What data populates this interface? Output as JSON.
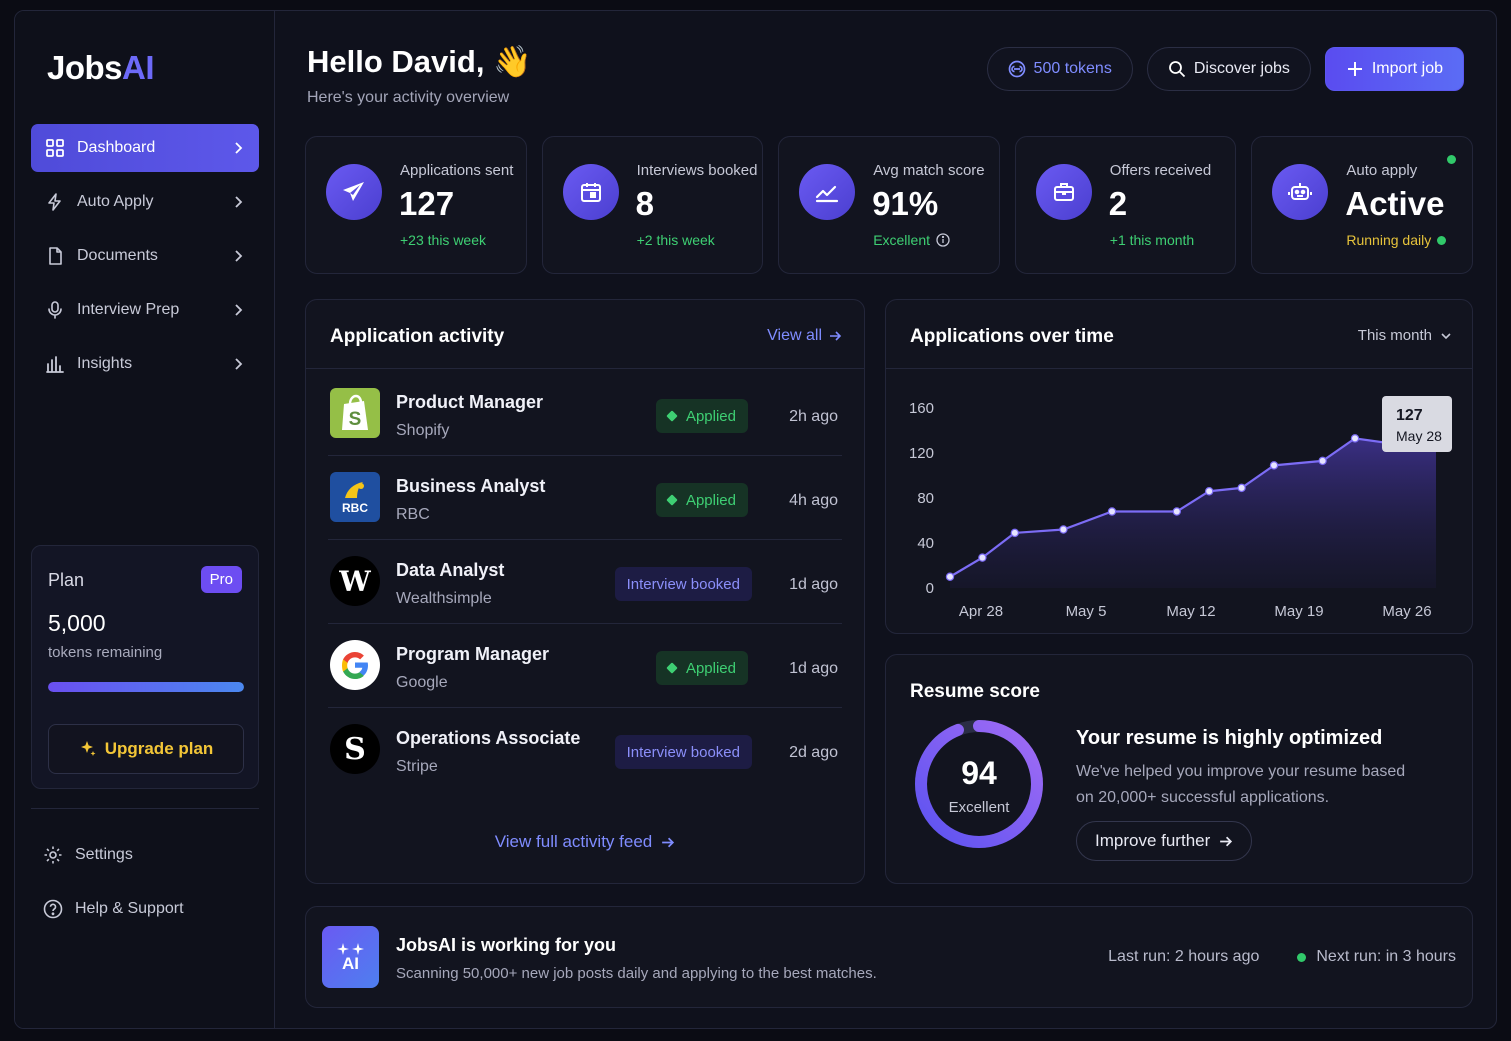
{
  "brand": {
    "name_part1": "Jobs",
    "name_part2": "AI",
    "accent": "#6d6af8"
  },
  "sidebar": {
    "items": [
      {
        "label": "Dashboard",
        "icon": "grid-icon",
        "active": true
      },
      {
        "label": "Auto Apply",
        "icon": "lightning-icon"
      },
      {
        "label": "Documents",
        "icon": "document-icon"
      },
      {
        "label": "Interview Prep",
        "icon": "microphone-icon"
      },
      {
        "label": "Insights",
        "icon": "bar-chart-icon"
      }
    ],
    "plan": {
      "title": "Plan",
      "badge": "Pro",
      "tokens": "5,000",
      "tokens_label": "tokens remaining",
      "usage_fraction": 1.0,
      "upgrade_label": "Upgrade plan"
    },
    "bottom": [
      {
        "label": "Settings",
        "icon": "gear-icon"
      },
      {
        "label": "Help & Support",
        "icon": "help-icon"
      }
    ]
  },
  "header": {
    "greeting": "Hello David, 👋",
    "subtitle": "Here's your activity overview",
    "tokens_label": "500 tokens",
    "discover_label": "Discover jobs",
    "import_label": "Import job"
  },
  "stats": [
    {
      "label": "Applications sent",
      "value": "127",
      "note": "+23 this week",
      "icon": "paper-plane-icon"
    },
    {
      "label": "Interviews booked",
      "value": "8",
      "note": "+2 this week",
      "icon": "calendar-icon"
    },
    {
      "label": "Avg match score",
      "value": "91%",
      "note": "Excellent",
      "icon": "trend-up-icon"
    },
    {
      "label": "Offers received",
      "value": "2",
      "note": "+1 this month",
      "icon": "briefcase-icon"
    },
    {
      "label": "Auto apply",
      "value": "Active",
      "note": "Running daily",
      "icon": "robot-icon"
    }
  ],
  "activity": {
    "title": "Application activity",
    "view_all": "View all",
    "rows": [
      {
        "title": "Product Manager",
        "company": "Shopify",
        "status": "Applied",
        "time": "2h ago",
        "logo": "shopify-logo"
      },
      {
        "title": "Business Analyst",
        "company": "RBC",
        "status": "Applied",
        "time": "4h ago",
        "logo": "rbc-logo",
        "logo_text": "RBC"
      },
      {
        "title": "Data Analyst",
        "company": "Wealthsimple",
        "status": "Interview booked",
        "time": "1d ago",
        "logo": "wealthsimple-logo",
        "logo_text": "W"
      },
      {
        "title": "Program Manager",
        "company": "Google",
        "status": "Applied",
        "time": "1d ago",
        "logo": "google-logo"
      },
      {
        "title": "Operations Associate",
        "company": "Stripe",
        "status": "Interview booked",
        "time": "2d ago",
        "logo": "stripe-logo",
        "logo_text": "S"
      }
    ],
    "feed_link": "View full activity feed"
  },
  "chart": {
    "title": "Applications over time",
    "period": "This month",
    "tooltip": {
      "value": "127",
      "date": "May 28"
    }
  },
  "chart_data": {
    "type": "area",
    "title": "Applications over time",
    "x_ticks": [
      "Apr 28",
      "May 5",
      "May 12",
      "May 19",
      "May 26"
    ],
    "y_ticks": [
      "0",
      "40",
      "80",
      "120",
      "160"
    ],
    "ylim": [
      0,
      160
    ],
    "xlim": [
      0,
      30
    ],
    "x": [
      0,
      2,
      4,
      7,
      10,
      14,
      16,
      18,
      20,
      23,
      25,
      28
    ],
    "y": [
      10,
      27,
      49,
      52,
      68,
      68,
      86,
      89,
      109,
      113,
      133,
      127
    ],
    "line_color": "#7c6cf5",
    "grid": false
  },
  "resume": {
    "title": "Resume score",
    "score": "94",
    "score_label": "Excellent",
    "score_fraction": 0.94,
    "heading": "Your resume is highly optimized",
    "body": "We've helped you improve your resume based on 20,000+ successful applications.",
    "button": "Improve further"
  },
  "banner": {
    "icon_text": "AI",
    "title": "JobsAI is working for you",
    "body": "Scanning 50,000+ new job posts daily and applying to the best matches.",
    "last_run": "Last run: 2 hours ago",
    "next_run": "Next run: in 3 hours"
  }
}
